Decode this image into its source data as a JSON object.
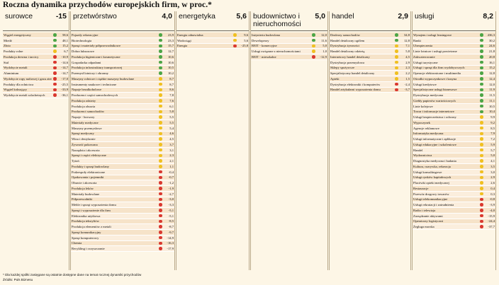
{
  "title": "Roczna dynamika przychodów europejskich firm, w proc.*",
  "footnote": "* Dla każdej spółki zasięgane są ostatnie dostępne dane na temat rocznej dynamiki przychodów",
  "source": "Źródło: Puls Biznesu",
  "colors": {
    "positive": "#4ca546",
    "neutral": "#f0c020",
    "negative": "#d9372f",
    "row_odd": "#f6e3c9",
    "row_even": "#fbeedd"
  },
  "chart_data": {
    "type": "table",
    "sectors": [
      {
        "name": "surowce",
        "value": "-15",
        "items": [
          {
            "label": "Węgiel energetyczny",
            "value": "58,6",
            "status": "green"
          },
          {
            "label": "Miedź",
            "value": "48,1",
            "status": "green"
          },
          {
            "label": "Złoto",
            "value": "15,2",
            "status": "green"
          },
          {
            "label": "Produkty rolne",
            "value": "6,7",
            "status": "yellow"
          },
          {
            "label": "Produkcja drewna i tarcicy",
            "value": "-10,9",
            "status": "red"
          },
          {
            "label": "Stal",
            "value": "-14,6",
            "status": "red"
          },
          {
            "label": "Wydobycie metali",
            "value": "-14,7",
            "status": "red"
          },
          {
            "label": "Aluminium",
            "value": "-14,7",
            "status": "red"
          },
          {
            "label": "Wydobycie ropy naftowej i gazu ziemnego",
            "value": "-17,0",
            "status": "red"
          },
          {
            "label": "Produkty dla rolnictwa",
            "value": "-25,5",
            "status": "red"
          },
          {
            "label": "Węgiel koksujący",
            "value": "-33,9",
            "status": "red"
          },
          {
            "label": "Wydobycie metali szlachetnych",
            "value": "-36,1",
            "status": "red"
          }
        ]
      },
      {
        "name": "przetwórstwo",
        "value": "4,0",
        "items": [
          {
            "label": "Pojazdy rekreacyjne",
            "value": "23,9",
            "status": "green"
          },
          {
            "label": "Biotechnologia",
            "value": "23,3",
            "status": "green"
          },
          {
            "label": "Sprzęt i materiały półprzewodnikowe",
            "value": "15,7",
            "status": "green"
          },
          {
            "label": "Dobra luksusowe",
            "value": "12,7",
            "status": "green"
          },
          {
            "label": "Produkcja higieniczne i kosmetyczne",
            "value": "10,6",
            "status": "green"
          },
          {
            "label": "Gospodarka odpadami",
            "value": "10,6",
            "status": "green"
          },
          {
            "label": "Produkcja infrastruktury transportowej",
            "value": "10,5",
            "status": "green"
          },
          {
            "label": "Przemysł lotniczy i obronny",
            "value": "10,2",
            "status": "green"
          },
          {
            "label": "Maszyny rolnicze i ciężkie maszyny budowlane",
            "value": "8,7",
            "status": "yellow"
          },
          {
            "label": "Instrumenty naukowe i techniczne",
            "value": "8,7",
            "status": "yellow"
          },
          {
            "label": "Napoje bezalkoholowe",
            "value": "8,6",
            "status": "yellow"
          },
          {
            "label": "Producenci części samochodowych",
            "value": "7,8",
            "status": "yellow"
          },
          {
            "label": "Produkcja odzieży",
            "value": "7,6",
            "status": "yellow"
          },
          {
            "label": "Produkcja obuwia",
            "value": "6,1",
            "status": "yellow"
          },
          {
            "label": "Producenci samochodów",
            "value": "5,8",
            "status": "yellow"
          },
          {
            "label": "Napoje - browary",
            "value": "5,5",
            "status": "yellow"
          },
          {
            "label": "Materiały medyczne",
            "value": "5,5",
            "status": "yellow"
          },
          {
            "label": "Maszyny przemysłowe",
            "value": "5,4",
            "status": "yellow"
          },
          {
            "label": "Sprzęt medyczny",
            "value": "4,6",
            "status": "yellow"
          },
          {
            "label": "Wina i destylarnie",
            "value": "4,5",
            "status": "yellow"
          },
          {
            "label": "Żywność pakowana",
            "value": "3,7",
            "status": "yellow"
          },
          {
            "label": "Narzędzia i akcesoria",
            "value": "3,1",
            "status": "yellow"
          },
          {
            "label": "Sprzęt i części elektryczne",
            "value": "2,3",
            "status": "yellow"
          },
          {
            "label": "Tytoń",
            "value": "2,1",
            "status": "yellow"
          },
          {
            "label": "Produkty i sprzęt budowlany",
            "value": "1,1",
            "status": "yellow"
          },
          {
            "label": "Podzespoły elektroniczne",
            "value": "-0,4",
            "status": "red"
          },
          {
            "label": "Opakowania i pojemniki",
            "value": "-0,7",
            "status": "red"
          },
          {
            "label": "Obuwie i akcesoria",
            "value": "-1,2",
            "status": "red"
          },
          {
            "label": "Produkcja leków",
            "value": "-1,9",
            "status": "red"
          },
          {
            "label": "Materiały budowlane",
            "value": "-2,7",
            "status": "red"
          },
          {
            "label": "Półprzewodniki",
            "value": "-3,0",
            "status": "red"
          },
          {
            "label": "Meble i sprzęt wyposażenia domu",
            "value": "-3,3",
            "status": "red"
          },
          {
            "label": "Sprzęt i wyposażenie dla firm",
            "value": "-5,1",
            "status": "red"
          },
          {
            "label": "Elektronika użytkowa",
            "value": "-5,1",
            "status": "red"
          },
          {
            "label": "Produkcja tekstyliów",
            "value": "-8,5",
            "status": "red"
          },
          {
            "label": "Produkcja elementów z metali",
            "value": "-8,7",
            "status": "red"
          },
          {
            "label": "Sprzęt komunikacyjny",
            "value": "-9,7",
            "status": "red"
          },
          {
            "label": "Sprzęt komputerowy",
            "value": "-14,9",
            "status": "red"
          },
          {
            "label": "Chemia",
            "value": "-16,3",
            "status": "red"
          },
          {
            "label": "Recykling i oczyszczanie",
            "value": "-17,9",
            "status": "red"
          }
        ]
      },
      {
        "name": "energetyka",
        "value": "5,6",
        "items": [
          {
            "label": "Energia odnawialna",
            "value": "9,6",
            "status": "yellow"
          },
          {
            "label": "Wodociągi",
            "value": "5,6",
            "status": "yellow"
          },
          {
            "label": "Energia",
            "value": "-25,8",
            "status": "red"
          }
        ]
      },
      {
        "name": "budownictwo i nieruchomości",
        "value": "5,0",
        "items": [
          {
            "label": "Inżynieria budowlana",
            "value": "12,0",
            "status": "green"
          },
          {
            "label": "Deweloperzy",
            "value": "11,6",
            "status": "green"
          },
          {
            "label": "REIT - komercyjne",
            "value": "5,0",
            "status": "yellow"
          },
          {
            "label": "Usługi związane z nieruchomościami",
            "value": "1,0",
            "status": "yellow"
          },
          {
            "label": "REIT - mieszkalne",
            "value": "-12,9",
            "status": "red"
          }
        ]
      },
      {
        "name": "handel",
        "value": "2,9",
        "items": [
          {
            "label": "Dealerzy samochodów",
            "value": "34,8",
            "status": "green"
          },
          {
            "label": "Handel detaliczny ogólem",
            "value": "12,8",
            "status": "green"
          },
          {
            "label": "Dystrybucja żywności",
            "value": "7,1",
            "status": "yellow"
          },
          {
            "label": "Handel detaliczny odzieżą",
            "value": "5,8",
            "status": "yellow"
          },
          {
            "label": "Internetowy handel detaliczny",
            "value": "4,5",
            "status": "yellow"
          },
          {
            "label": "Dystrybucja przemysłowa",
            "value": "2,9",
            "status": "yellow"
          },
          {
            "label": "Sklepy spożywcze",
            "value": "2,3",
            "status": "yellow"
          },
          {
            "label": "Specjalistyczny handel detaliczny",
            "value": "2,2",
            "status": "yellow"
          },
          {
            "label": "Apteki",
            "value": "1,5",
            "status": "yellow"
          },
          {
            "label": "Dystrybucja elektroniki i komputerów",
            "value": "-2,4",
            "status": "red"
          },
          {
            "label": "Handel artykułami wyposażenia domu",
            "value": "-3,7",
            "status": "red"
          }
        ]
      },
      {
        "name": "usługi",
        "value": "8,2",
        "items": [
          {
            "label": "Wynajem i usługi leasingowe",
            "value": "436,3",
            "status": "green"
          },
          {
            "label": "Banki",
            "value": "30,2",
            "status": "green"
          },
          {
            "label": "Ubezpieczenia",
            "value": "24,6",
            "status": "green"
          },
          {
            "label": "Linie lotnicze i usługi powietrzne",
            "value": "21,8",
            "status": "green"
          },
          {
            "label": "Zakwaterowanie",
            "value": "20,8",
            "status": "green"
          },
          {
            "label": "Usługi turystyczne",
            "value": "16,1",
            "status": "green"
          },
          {
            "label": "Usługi i sprzęt dla firm wydobywczych",
            "value": "15,2",
            "status": "green"
          },
          {
            "label": "Operacje elektroniczne i multimedia",
            "value": "12,8",
            "status": "green"
          },
          {
            "label": "Ośrodki wypoczynkowe i kasyna",
            "value": "12,4",
            "status": "green"
          },
          {
            "label": "Usługi kredytowe",
            "value": "12,0",
            "status": "green"
          },
          {
            "label": "Specjalistyczne usługi biznesowe",
            "value": "11,9",
            "status": "green"
          },
          {
            "label": "Dystrybucja medyczna",
            "value": "11,5",
            "status": "green"
          },
          {
            "label": "Giełdy papierów wartościowych",
            "value": "11,1",
            "status": "green"
          },
          {
            "label": "Linie kolejowe",
            "value": "10,5",
            "status": "green"
          },
          {
            "label": "Towar i informacje internetowe",
            "value": "10,4",
            "status": "green"
          },
          {
            "label": "Usługi bezpieczeństwa i ochrony",
            "value": "9,9",
            "status": "yellow"
          },
          {
            "label": "Wypoczynek",
            "value": "9,2",
            "status": "yellow"
          },
          {
            "label": "Agencje reklamowe",
            "value": "8,5",
            "status": "yellow"
          },
          {
            "label": "Informatyka medyczna",
            "value": "7,9",
            "status": "yellow"
          },
          {
            "label": "Usługi informatyczne i aplikacje",
            "value": "7,2",
            "status": "yellow"
          },
          {
            "label": "Usługi edukacyjne i szkoleniowe",
            "value": "5,9",
            "status": "yellow"
          },
          {
            "label": "Handel",
            "value": "5,7",
            "status": "yellow"
          },
          {
            "label": "Wydawnictwa",
            "value": "5,0",
            "status": "yellow"
          },
          {
            "label": "Diagnostyka medyczna i badania",
            "value": "4,1",
            "status": "yellow"
          },
          {
            "label": "Kultura, rozrywka, rekreacja",
            "value": "3,5",
            "status": "yellow"
          },
          {
            "label": "Usługi konsultingowe",
            "value": "3,0",
            "status": "yellow"
          },
          {
            "label": "Usługi rynków kapitałowych",
            "value": "2,9",
            "status": "yellow"
          },
          {
            "label": "Placówki opieki medycznej",
            "value": "2,6",
            "status": "yellow"
          },
          {
            "label": "Restauracje",
            "value": "0,4",
            "status": "yellow"
          },
          {
            "label": "Przewóz drogowy towarów",
            "value": "0,3",
            "status": "yellow"
          },
          {
            "label": "Usługi telekomunikacyjne",
            "value": "-0,8",
            "status": "red"
          },
          {
            "label": "Usługi rekrutacji i zatrudnienia",
            "value": "-3,9",
            "status": "red"
          },
          {
            "label": "Radio i telewizja",
            "value": "-4,0",
            "status": "red"
          },
          {
            "label": "Zarządzanie aktywami",
            "value": "-15,9",
            "status": "red"
          },
          {
            "label": "Operatorzy logistyczni",
            "value": "-24,4",
            "status": "red"
          },
          {
            "label": "Żegluga morska",
            "value": "-37,7",
            "status": "red"
          }
        ]
      }
    ]
  }
}
